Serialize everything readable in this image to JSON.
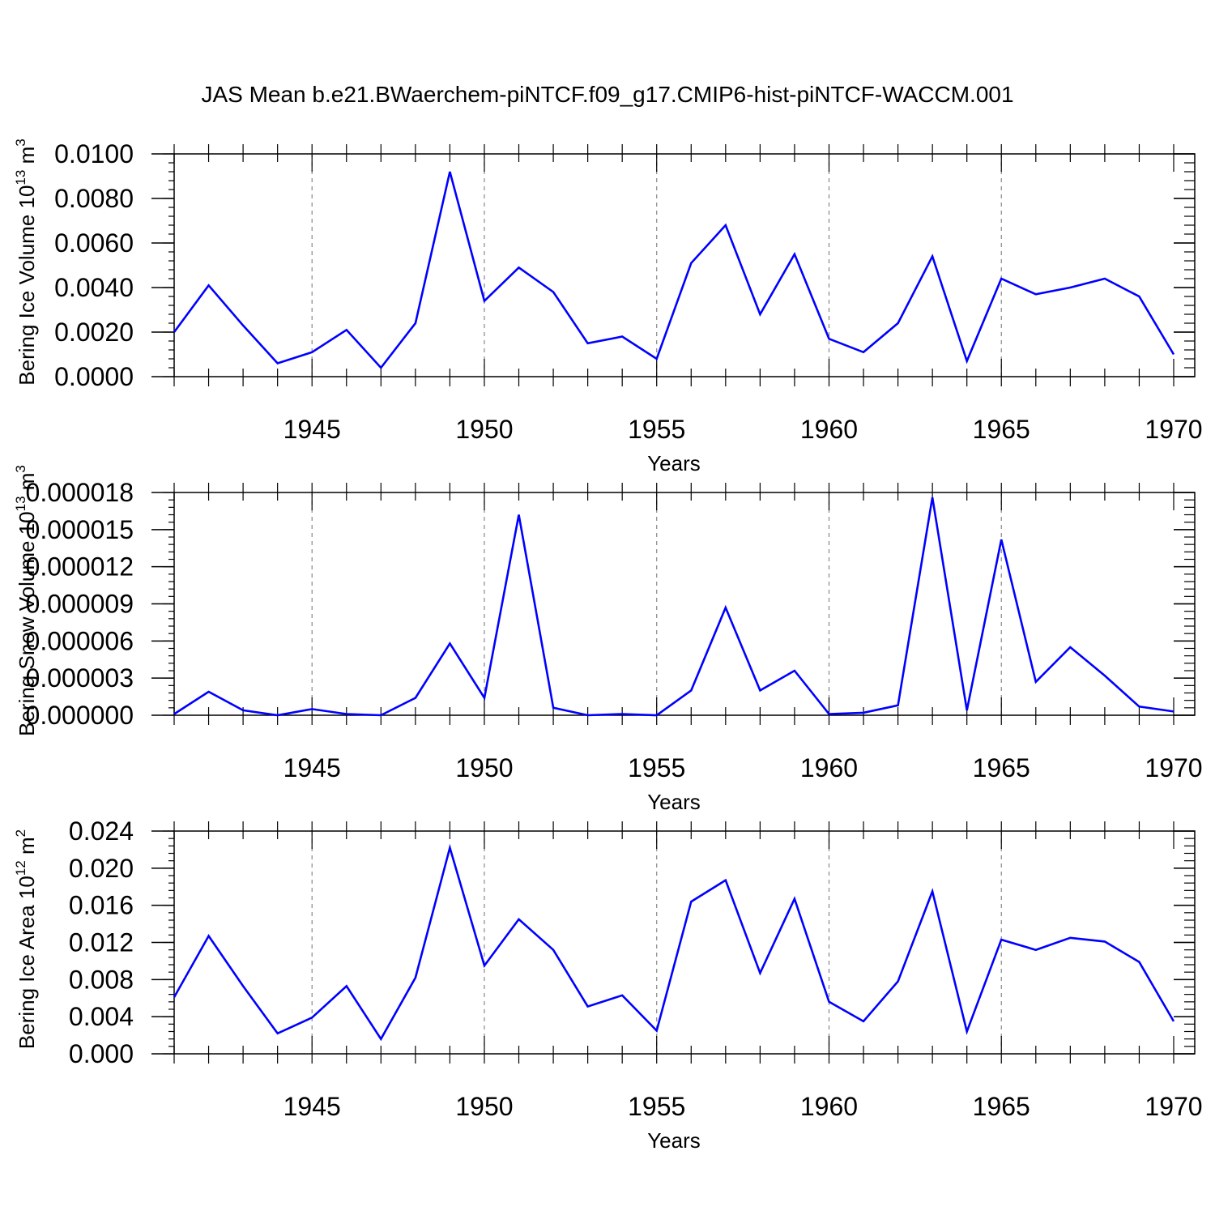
{
  "figure": {
    "title": "JAS Mean b.e21.BWaerchem-piNTCF.f09_g17.CMIP6-hist-piNTCF-WACCM.001"
  },
  "chart_data": [
    {
      "type": "line",
      "ylabel": {
        "text": "Bering Ice Volume 10",
        "exp": "13",
        "unit": " m",
        "unit_exp": "3"
      },
      "xlabel": "Years",
      "xlim": [
        1941,
        1970
      ],
      "ylim": [
        0,
        0.01
      ],
      "xticks": [
        1945,
        1950,
        1955,
        1960,
        1965,
        1970
      ],
      "yticks": [
        0,
        0.002,
        0.004,
        0.006,
        0.008,
        0.01
      ],
      "yticklabels": [
        "0.0000",
        "0.0020",
        "0.0040",
        "0.0060",
        "0.0080",
        "0.0100"
      ],
      "grid": "vertical-dashed",
      "color": "#0000ff",
      "x": [
        1941,
        1942,
        1943,
        1944,
        1945,
        1946,
        1947,
        1948,
        1949,
        1950,
        1951,
        1952,
        1953,
        1954,
        1955,
        1956,
        1957,
        1958,
        1959,
        1960,
        1961,
        1962,
        1963,
        1964,
        1965,
        1966,
        1967,
        1968,
        1969,
        1970
      ],
      "y": [
        0.002,
        0.0041,
        0.0023,
        0.0006,
        0.0011,
        0.0021,
        0.0004,
        0.0024,
        0.0092,
        0.0034,
        0.0049,
        0.0038,
        0.0015,
        0.0018,
        0.0008,
        0.0051,
        0.0068,
        0.0028,
        0.0055,
        0.0017,
        0.0011,
        0.0024,
        0.0054,
        0.0007,
        0.0044,
        0.0037,
        0.004,
        0.0044,
        0.0036,
        0.001
      ]
    },
    {
      "type": "line",
      "ylabel": {
        "text": "Bering Snow Volume 10",
        "exp": "13",
        "unit": " m",
        "unit_exp": "3"
      },
      "xlabel": "Years",
      "xlim": [
        1941,
        1970
      ],
      "ylim": [
        0,
        1.8e-05
      ],
      "xticks": [
        1945,
        1950,
        1955,
        1960,
        1965,
        1970
      ],
      "yticks": [
        0,
        3e-06,
        6e-06,
        9e-06,
        1.2e-05,
        1.5e-05,
        1.8e-05
      ],
      "yticklabels": [
        "0.000000",
        "0.000003",
        "0.000006",
        "0.000009",
        "0.000012",
        "0.000015",
        "0.000018"
      ],
      "grid": "vertical-dashed",
      "color": "#0000ff",
      "x": [
        1941,
        1942,
        1943,
        1944,
        1945,
        1946,
        1947,
        1948,
        1949,
        1950,
        1951,
        1952,
        1953,
        1954,
        1955,
        1956,
        1957,
        1958,
        1959,
        1960,
        1961,
        1962,
        1963,
        1964,
        1965,
        1966,
        1967,
        1968,
        1969,
        1970
      ],
      "y": [
        1e-07,
        1.9e-06,
        4e-07,
        0.0,
        5e-07,
        1e-07,
        0.0,
        1.4e-06,
        5.8e-06,
        1.4e-06,
        1.62e-05,
        6e-07,
        0.0,
        1e-07,
        0.0,
        2e-06,
        8.7e-06,
        2e-06,
        3.6e-06,
        1e-07,
        2e-07,
        8e-07,
        1.76e-05,
        4e-07,
        1.42e-05,
        2.7e-06,
        5.5e-06,
        3.2e-06,
        7e-07,
        3e-07
      ]
    },
    {
      "type": "line",
      "ylabel": {
        "text": "Bering Ice Area 10",
        "exp": "12",
        "unit": " m",
        "unit_exp": "2"
      },
      "xlabel": "Years",
      "xlim": [
        1941,
        1970
      ],
      "ylim": [
        0,
        0.024
      ],
      "xticks": [
        1945,
        1950,
        1955,
        1960,
        1965,
        1970
      ],
      "yticks": [
        0,
        0.004,
        0.008,
        0.012,
        0.016,
        0.02,
        0.024
      ],
      "yticklabels": [
        "0.000",
        "0.004",
        "0.008",
        "0.012",
        "0.016",
        "0.020",
        "0.024"
      ],
      "grid": "vertical-dashed",
      "color": "#0000ff",
      "x": [
        1941,
        1942,
        1943,
        1944,
        1945,
        1946,
        1947,
        1948,
        1949,
        1950,
        1951,
        1952,
        1953,
        1954,
        1955,
        1956,
        1957,
        1958,
        1959,
        1960,
        1961,
        1962,
        1963,
        1964,
        1965,
        1966,
        1967,
        1968,
        1969,
        1970
      ],
      "y": [
        0.0061,
        0.0127,
        0.0073,
        0.0022,
        0.0039,
        0.0073,
        0.0016,
        0.0082,
        0.0222,
        0.0095,
        0.0145,
        0.0112,
        0.0051,
        0.0063,
        0.0025,
        0.0164,
        0.0187,
        0.0087,
        0.0167,
        0.0056,
        0.0035,
        0.0078,
        0.0175,
        0.0024,
        0.0123,
        0.0112,
        0.0125,
        0.0121,
        0.0099,
        0.0035
      ]
    }
  ]
}
